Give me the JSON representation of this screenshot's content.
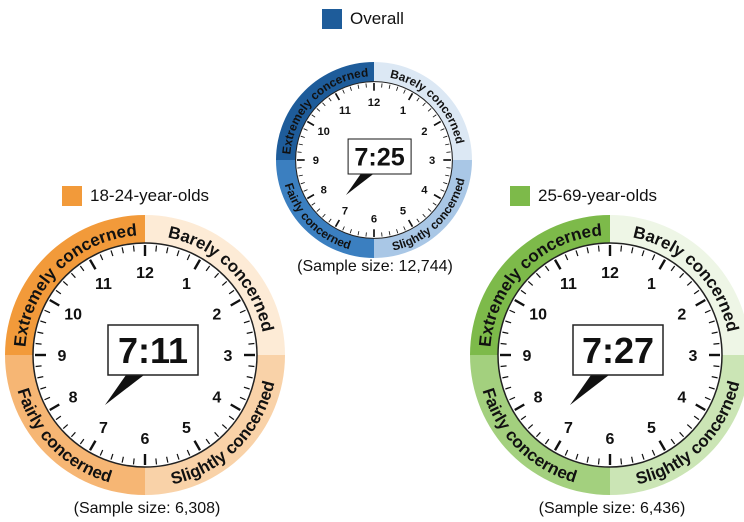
{
  "chart_data": [
    {
      "type": "clock",
      "legend": "Overall",
      "time": "7:25",
      "sample_label": "",
      "colors": {
        "dark": "#1E5C9A",
        "mid": "#3B7FC0",
        "light": "#A9C7E6",
        "pale": "#DCE8F4"
      },
      "segments": [
        "Extremely concerned",
        "Barely concerned",
        "Slightly concerned",
        "Fairly concerned"
      ],
      "numbers": [
        "12",
        "1",
        "2",
        "3",
        "4",
        "5",
        "6",
        "7",
        "8",
        "9",
        "10",
        "11"
      ]
    },
    {
      "type": "clock",
      "legend": "18-24-year-olds",
      "time": "7:11",
      "sample_label": "(Sample size: 6,308)",
      "colors": {
        "dark": "#F29A3A",
        "mid": "#F6B674",
        "light": "#F9D2A8",
        "pale": "#FDEBD6"
      },
      "segments": [
        "Extremely concerned",
        "Barely concerned",
        "Slightly concerned",
        "Fairly concerned"
      ],
      "numbers": [
        "12",
        "1",
        "2",
        "3",
        "4",
        "5",
        "6",
        "7",
        "8",
        "9",
        "10",
        "11"
      ]
    },
    {
      "type": "clock",
      "legend": "25-69-year-olds",
      "time": "7:27",
      "sample_label": "(Sample size: 6,436)",
      "colors": {
        "dark": "#7DBA4A",
        "mid": "#A3D07E",
        "light": "#CBE5B5",
        "pale": "#EEF6E6"
      },
      "segments": [
        "Extremely concerned",
        "Barely concerned",
        "Slightly concerned",
        "Fairly concerned"
      ],
      "numbers": [
        "12",
        "1",
        "2",
        "3",
        "4",
        "5",
        "6",
        "7",
        "8",
        "9",
        "10",
        "11"
      ]
    }
  ],
  "overall_sample_label": "(Sample size: 12,744)"
}
